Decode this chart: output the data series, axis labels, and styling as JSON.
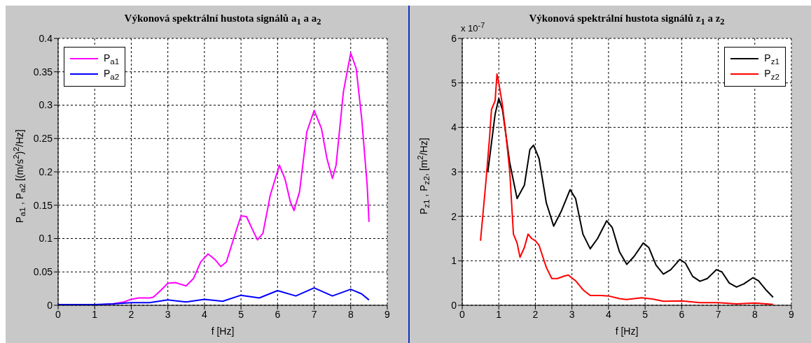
{
  "chart_data": [
    {
      "type": "line",
      "title": "Výkonová spektrální hustota signálů a$_{1}$ a a$_{2}$",
      "xlabel": "f [Hz]",
      "ylabel": "P$_{a1}$ , P$_{a2}$ [(m/s$^{2}$)$^{2}$/Hz]",
      "xlim": [
        0,
        9
      ],
      "xticks": [
        0,
        1,
        2,
        3,
        4,
        5,
        6,
        7,
        8,
        9
      ],
      "ylim": [
        0,
        0.4
      ],
      "yticks": [
        0,
        0.05,
        0.1,
        0.15,
        0.2,
        0.25,
        0.3,
        0.35,
        0.4
      ],
      "grid": true,
      "legend": "top left",
      "series": [
        {
          "name": "P$_{a1}$",
          "color": "#ff00ff",
          "x": [
            1.2,
            1.5,
            1.8,
            2,
            2.2,
            2.5,
            2.6,
            2.8,
            3,
            3.2,
            3.5,
            3.7,
            3.9,
            4.1,
            4.3,
            4.45,
            4.6,
            4.8,
            5,
            5.15,
            5.3,
            5.45,
            5.6,
            5.8,
            6.05,
            6.2,
            6.35,
            6.45,
            6.6,
            6.8,
            7,
            7.2,
            7.35,
            7.5,
            7.6,
            7.8,
            8,
            8.15,
            8.3,
            8.45,
            8.5
          ],
          "values": [
            0.001,
            0.002,
            0.005,
            0.009,
            0.011,
            0.011,
            0.012,
            0.022,
            0.033,
            0.034,
            0.029,
            0.04,
            0.065,
            0.077,
            0.068,
            0.058,
            0.065,
            0.1,
            0.134,
            0.133,
            0.115,
            0.098,
            0.108,
            0.165,
            0.21,
            0.19,
            0.155,
            0.142,
            0.17,
            0.26,
            0.292,
            0.265,
            0.22,
            0.19,
            0.21,
            0.32,
            0.378,
            0.355,
            0.28,
            0.18,
            0.125
          ]
        },
        {
          "name": "P$_{a2}$",
          "color": "#0000ff",
          "x": [
            0,
            1,
            1.5,
            2,
            2.5,
            3,
            3.5,
            4,
            4.5,
            5,
            5.5,
            6,
            6.5,
            7,
            7.5,
            8,
            8.3,
            8.5
          ],
          "values": [
            0.001,
            0.001,
            0.002,
            0.004,
            0.004,
            0.008,
            0.005,
            0.009,
            0.006,
            0.015,
            0.011,
            0.022,
            0.014,
            0.026,
            0.014,
            0.024,
            0.017,
            0.008
          ]
        }
      ]
    },
    {
      "type": "line",
      "title": "Výkonová spektrální hustota signálů z$_{1}$ a z$_{2}$",
      "xlabel": "f [Hz]",
      "ylabel": "P$_{z1}$ , P$_{z2}$, [m$^{2}$/Hz]",
      "annotations": [
        "x 10$^{-7}$"
      ],
      "xlim": [
        0,
        9
      ],
      "xticks": [
        0,
        1,
        2,
        3,
        4,
        5,
        6,
        7,
        8,
        9
      ],
      "ylim": [
        0,
        6
      ],
      "yticks": [
        0,
        1,
        2,
        3,
        4,
        5,
        6
      ],
      "grid": true,
      "legend": "top right",
      "series": [
        {
          "name": "P$_{z1}$",
          "color": "#000000",
          "x": [
            0.7,
            0.9,
            1,
            1.1,
            1.3,
            1.5,
            1.7,
            1.85,
            1.95,
            2.1,
            2.3,
            2.5,
            2.7,
            2.95,
            3.1,
            3.3,
            3.5,
            3.7,
            3.95,
            4.1,
            4.3,
            4.5,
            4.7,
            4.95,
            5.1,
            5.3,
            5.5,
            5.7,
            5.95,
            6.1,
            6.3,
            6.5,
            6.7,
            6.95,
            7.1,
            7.3,
            7.5,
            7.7,
            7.95,
            8.1,
            8.3,
            8.5
          ],
          "values": [
            3,
            4.3,
            4.65,
            4.4,
            3.2,
            2.4,
            2.7,
            3.5,
            3.6,
            3.3,
            2.3,
            1.78,
            2.1,
            2.6,
            2.4,
            1.6,
            1.27,
            1.5,
            1.9,
            1.75,
            1.2,
            0.92,
            1.1,
            1.4,
            1.3,
            0.9,
            0.7,
            0.8,
            1.03,
            0.95,
            0.65,
            0.54,
            0.6,
            0.8,
            0.75,
            0.5,
            0.41,
            0.48,
            0.62,
            0.55,
            0.35,
            0.18
          ]
        },
        {
          "name": "P$_{z2}$",
          "color": "#ff0000",
          "x": [
            0.5,
            0.65,
            0.75,
            0.8,
            0.85,
            0.9,
            0.95,
            1,
            1.1,
            1.2,
            1.3,
            1.4,
            1.5,
            1.58,
            1.7,
            1.8,
            1.9,
            2,
            2.1,
            2.2,
            2.3,
            2.45,
            2.6,
            2.8,
            2.9,
            3.1,
            3.3,
            3.5,
            3.8,
            4,
            4.3,
            4.5,
            4.9,
            5.2,
            5.5,
            6,
            6.5,
            7,
            7.5,
            8,
            8.5
          ],
          "values": [
            1.45,
            2.8,
            3.8,
            4.4,
            4.5,
            4.6,
            5.2,
            5,
            4.5,
            3.8,
            3,
            1.6,
            1.4,
            1.08,
            1.3,
            1.6,
            1.5,
            1.45,
            1.35,
            1.1,
            0.85,
            0.6,
            0.6,
            0.66,
            0.68,
            0.55,
            0.35,
            0.22,
            0.22,
            0.21,
            0.15,
            0.13,
            0.17,
            0.14,
            0.09,
            0.1,
            0.06,
            0.06,
            0.03,
            0.05,
            0.02
          ]
        }
      ]
    }
  ]
}
